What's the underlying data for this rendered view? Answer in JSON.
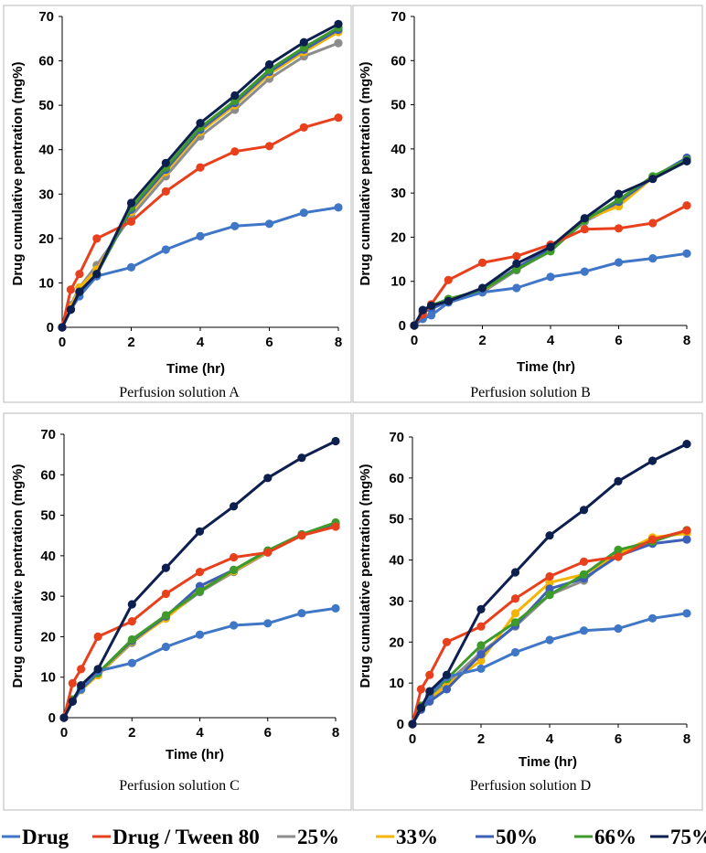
{
  "legend": [
    {
      "name": "Drug",
      "color": "#3f76c6"
    },
    {
      "name": "Drug / Tween 80",
      "color": "#e8401c"
    },
    {
      "name": "25%",
      "color": "#8c8c8c"
    },
    {
      "name": "33%",
      "color": "#f5b400"
    },
    {
      "name": "50%",
      "color": "#3d5fb8"
    },
    {
      "name": "66%",
      "color": "#3e9a2a"
    },
    {
      "name": "75%",
      "color": "#0d1f4f"
    }
  ],
  "chart_data": [
    {
      "type": "line",
      "caption": "Perfusion solution A",
      "xlabel": "Time (hr)",
      "ylabel": "Drug cumulative pentration (mg%)",
      "xlim": [
        0,
        8
      ],
      "ylim": [
        0,
        70
      ],
      "xticks": [
        "0",
        "2",
        "4",
        "6",
        "8"
      ],
      "yticks": [
        "0",
        "10",
        "20",
        "30",
        "40",
        "50",
        "60",
        "70"
      ],
      "x": [
        0,
        0.25,
        0.5,
        1,
        2,
        3,
        4,
        5,
        6,
        7,
        8
      ],
      "series": [
        {
          "name": "25%",
          "values": [
            0,
            5,
            9,
            14,
            25,
            34,
            43,
            49,
            56,
            61,
            64
          ]
        },
        {
          "name": "33%",
          "values": [
            0,
            4.5,
            9,
            13,
            26,
            35,
            44,
            50,
            57,
            62,
            66.5
          ]
        },
        {
          "name": "50%",
          "values": [
            0,
            4,
            8,
            12,
            26.5,
            35.5,
            44.5,
            50.5,
            57.5,
            62.5,
            67
          ]
        },
        {
          "name": "66%",
          "values": [
            0,
            4,
            8,
            12,
            27,
            36,
            45,
            51,
            58,
            63,
            67.5
          ]
        },
        {
          "name": "Drug",
          "values": [
            0,
            4,
            7,
            11.5,
            13.5,
            17.5,
            20.5,
            22.8,
            23.3,
            25.8,
            27
          ]
        },
        {
          "name": "Drug / Tween 80",
          "values": [
            0,
            8.5,
            12,
            20,
            23.8,
            30.6,
            36,
            39.6,
            40.8,
            45,
            47.2
          ]
        },
        {
          "name": "75%",
          "values": [
            0,
            4,
            8,
            12,
            28,
            37,
            46,
            52.2,
            59.2,
            64.2,
            68.3
          ]
        }
      ]
    },
    {
      "type": "line",
      "caption": "Perfusion solution B",
      "xlabel": "Time (hr)",
      "ylabel": "Drug cumulative pentration (mg%)",
      "xlim": [
        0,
        8
      ],
      "ylim": [
        0,
        70
      ],
      "xticks": [
        "0",
        "2",
        "4",
        "6",
        "8"
      ],
      "yticks": [
        "0",
        "10",
        "20",
        "30",
        "40",
        "50",
        "60",
        "70"
      ],
      "x": [
        0,
        0.25,
        0.5,
        1,
        2,
        3,
        4,
        5,
        6,
        7,
        8
      ],
      "series": [
        {
          "name": "25%",
          "values": [
            0,
            3,
            3.8,
            5.5,
            7.5,
            12.5,
            17,
            23.5,
            27.5,
            33.5,
            37.5
          ]
        },
        {
          "name": "33%",
          "values": [
            0,
            3,
            3.8,
            5.5,
            7.8,
            13,
            17.5,
            24,
            27,
            33.5,
            37.5
          ]
        },
        {
          "name": "50%",
          "values": [
            0,
            3,
            3.8,
            5.5,
            8,
            13,
            17.5,
            24,
            28,
            33.5,
            38
          ]
        },
        {
          "name": "66%",
          "values": [
            0,
            3.2,
            4.5,
            6,
            8,
            12.7,
            16.8,
            23.8,
            28.5,
            33.8,
            37.5
          ]
        },
        {
          "name": "Drug",
          "values": [
            0,
            1.5,
            2.3,
            5.2,
            7.5,
            8.5,
            11,
            12.2,
            14.3,
            15.2,
            16.3
          ]
        },
        {
          "name": "Drug / Tween 80",
          "values": [
            0,
            2.5,
            4.8,
            10.3,
            14.2,
            15.7,
            18.3,
            21.8,
            22,
            23.2,
            27.2
          ]
        },
        {
          "name": "75%",
          "values": [
            0,
            3.5,
            4.5,
            5.5,
            8.5,
            14,
            17.8,
            24.3,
            29.8,
            33.2,
            37.2
          ]
        }
      ]
    },
    {
      "type": "line",
      "caption": "Perfusion solution C",
      "xlabel": "Time (hr)",
      "ylabel": "Drug cumulative pentration (mg%)",
      "xlim": [
        0,
        8
      ],
      "ylim": [
        0,
        70
      ],
      "xticks": [
        "0",
        "2",
        "4",
        "6",
        "8"
      ],
      "yticks": [
        "0",
        "10",
        "20",
        "30",
        "40",
        "50",
        "60",
        "70"
      ],
      "x": [
        0,
        0.25,
        0.5,
        1,
        2,
        3,
        4,
        5,
        6,
        7,
        8
      ],
      "series": [
        {
          "name": "25%",
          "values": [
            0,
            4,
            7,
            10.5,
            18.5,
            24.8,
            31,
            36,
            40.8,
            45,
            47.8
          ]
        },
        {
          "name": "33%",
          "values": [
            0,
            4,
            6.8,
            10.5,
            18.8,
            24.5,
            31.5,
            36.2,
            41,
            45,
            48
          ]
        },
        {
          "name": "50%",
          "values": [
            0,
            4,
            7,
            11,
            19,
            25,
            32.5,
            36.5,
            41.2,
            45.2,
            48
          ]
        },
        {
          "name": "66%",
          "values": [
            0,
            4.5,
            7.5,
            11,
            19.3,
            25.3,
            31.2,
            36.5,
            41.3,
            45.3,
            48.2
          ]
        },
        {
          "name": "Drug",
          "values": [
            0,
            4,
            7,
            11.5,
            13.5,
            17.5,
            20.5,
            22.8,
            23.3,
            25.8,
            27
          ]
        },
        {
          "name": "Drug / Tween 80",
          "values": [
            0,
            8.5,
            12,
            20,
            23.8,
            30.6,
            36,
            39.6,
            40.8,
            45,
            47.2
          ]
        },
        {
          "name": "75%",
          "values": [
            0,
            4,
            8,
            12,
            28,
            37,
            46,
            52.2,
            59.2,
            64.2,
            68.3
          ]
        }
      ]
    },
    {
      "type": "line",
      "caption": "Perfusion solution D",
      "xlabel": "Time (hr)",
      "ylabel": "Drug cumulative pentration (mg%)",
      "xlim": [
        0,
        8
      ],
      "ylim": [
        0,
        70
      ],
      "xticks": [
        "0",
        "2",
        "4",
        "6",
        "8"
      ],
      "yticks": [
        "0",
        "10",
        "20",
        "30",
        "40",
        "50",
        "60",
        "70"
      ],
      "x": [
        0,
        0.25,
        0.5,
        1,
        2,
        3,
        4,
        5,
        6,
        7,
        8
      ],
      "series": [
        {
          "name": "25%",
          "values": [
            0,
            4,
            6.5,
            10,
            17.5,
            23.8,
            31.5,
            35,
            42,
            45,
            47
          ]
        },
        {
          "name": "33%",
          "values": [
            0,
            4,
            6.2,
            9.5,
            15.5,
            27,
            34.5,
            36.5,
            41.5,
            45.5,
            46.5
          ]
        },
        {
          "name": "50%",
          "values": [
            0,
            3.5,
            5.5,
            8.5,
            17,
            24,
            33,
            35.5,
            41,
            44,
            45
          ]
        },
        {
          "name": "66%",
          "values": [
            0,
            4.5,
            7,
            11,
            19.2,
            24.8,
            31.5,
            36.5,
            42.5,
            44.5,
            47.3
          ]
        },
        {
          "name": "Drug",
          "values": [
            0,
            4,
            7,
            11.5,
            13.5,
            17.5,
            20.5,
            22.8,
            23.3,
            25.8,
            27
          ]
        },
        {
          "name": "Drug / Tween 80",
          "values": [
            0,
            8.5,
            12,
            20,
            23.8,
            30.6,
            36,
            39.6,
            40.8,
            45,
            47.2
          ]
        },
        {
          "name": "75%",
          "values": [
            0,
            4,
            8,
            12,
            28,
            37,
            46,
            52.2,
            59.2,
            64.2,
            68.3
          ]
        }
      ]
    }
  ]
}
